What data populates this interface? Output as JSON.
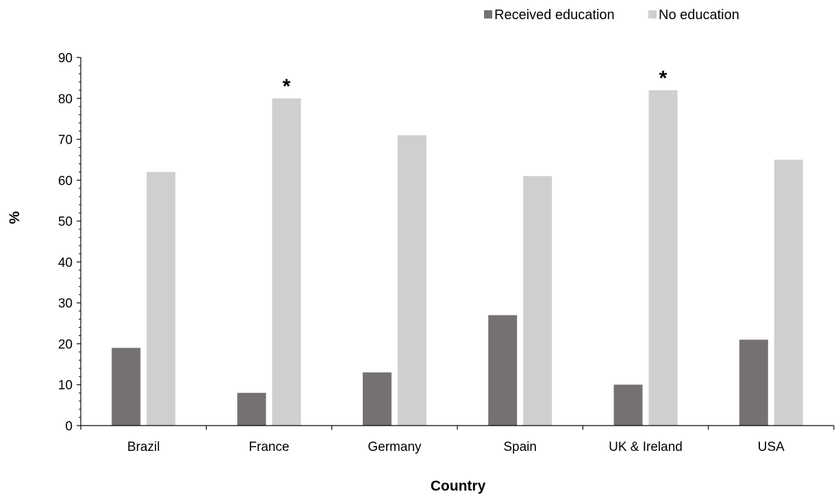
{
  "chart_data": {
    "type": "bar",
    "title": "",
    "xlabel": "Country",
    "ylabel": "%",
    "ylim": [
      0,
      90
    ],
    "yticks": [
      0,
      10,
      20,
      30,
      40,
      50,
      60,
      70,
      80,
      90
    ],
    "grid": false,
    "legend_position": "top-right",
    "categories": [
      "Brazil",
      "France",
      "Germany",
      "Spain",
      "UK & Ireland",
      "USA"
    ],
    "series": [
      {
        "name": "Received education",
        "color": "#767171",
        "values": [
          19,
          8,
          13,
          27,
          10,
          21
        ]
      },
      {
        "name": "No education",
        "color": "#D0CECE",
        "values": [
          62,
          80,
          71,
          61,
          82,
          65
        ]
      }
    ],
    "annotations": [
      {
        "text": "*",
        "category": "France",
        "series": "No education"
      },
      {
        "text": "*",
        "category": "UK & Ireland",
        "series": "No education"
      }
    ]
  }
}
